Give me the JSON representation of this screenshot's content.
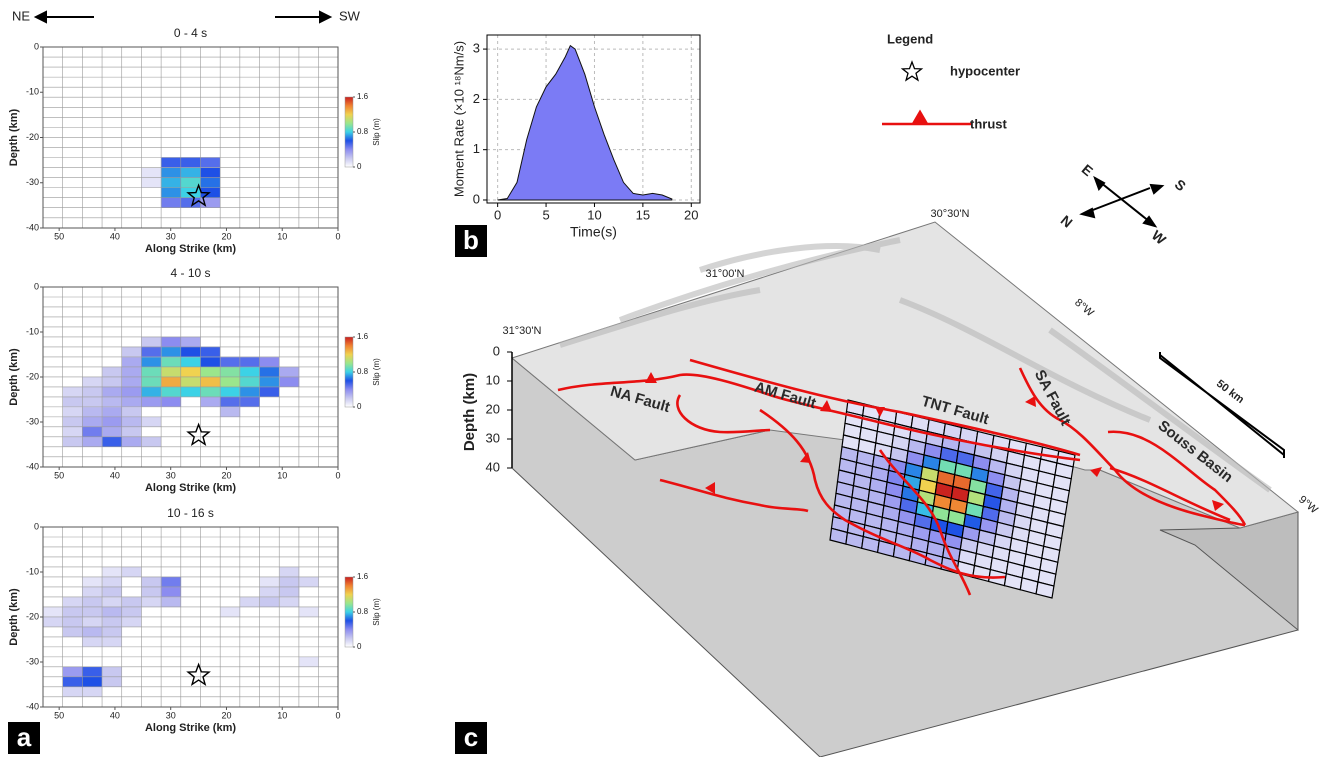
{
  "header": {
    "left": "NE",
    "right": "SW"
  },
  "panel_labels": [
    "a",
    "b",
    "c"
  ],
  "chart_data": [
    {
      "type": "heatmap",
      "title": "0 - 4 s",
      "xlabel": "Along Strike (km)",
      "ylabel": "Depth (km)",
      "xlim": [
        52.9,
        0
      ],
      "ylim": [
        -40,
        0
      ],
      "xticks": [
        50,
        40,
        30,
        20,
        10,
        0
      ],
      "yticks": [
        0,
        -10,
        -20,
        -30,
        -40
      ],
      "cell_width": 3.53,
      "cell_height": 2.22,
      "colorbar": {
        "label": "Slip (m)",
        "lim": [
          0,
          1.6
        ],
        "ticks": [
          0,
          0.8,
          1.6
        ]
      },
      "hypocenter": {
        "strike": 25,
        "depth": -33
      },
      "cells": [
        {
          "strike": 29.9,
          "depth": -25.5,
          "slip": 0.55
        },
        {
          "strike": 26.4,
          "depth": -25.5,
          "slip": 0.55
        },
        {
          "strike": 22.9,
          "depth": -25.5,
          "slip": 0.5
        },
        {
          "strike": 33.5,
          "depth": -27.8,
          "slip": 0.1
        },
        {
          "strike": 29.9,
          "depth": -27.8,
          "slip": 0.7
        },
        {
          "strike": 26.4,
          "depth": -27.8,
          "slip": 0.75
        },
        {
          "strike": 22.9,
          "depth": -27.8,
          "slip": 0.6
        },
        {
          "strike": 33.5,
          "depth": -30.0,
          "slip": 0.1
        },
        {
          "strike": 29.9,
          "depth": -30.0,
          "slip": 0.75
        },
        {
          "strike": 26.4,
          "depth": -30.0,
          "slip": 0.85
        },
        {
          "strike": 22.9,
          "depth": -30.0,
          "slip": 0.65
        },
        {
          "strike": 29.9,
          "depth": -32.2,
          "slip": 0.7
        },
        {
          "strike": 26.4,
          "depth": -32.2,
          "slip": 0.8
        },
        {
          "strike": 22.9,
          "depth": -32.2,
          "slip": 0.6
        },
        {
          "strike": 29.9,
          "depth": -34.4,
          "slip": 0.45
        },
        {
          "strike": 26.4,
          "depth": -34.4,
          "slip": 0.5
        },
        {
          "strike": 22.9,
          "depth": -34.4,
          "slip": 0.35
        }
      ]
    },
    {
      "type": "heatmap",
      "title": "4 - 10 s",
      "xlabel": "Along Strike (km)",
      "ylabel": "Depth (km)",
      "xlim": [
        52.9,
        0
      ],
      "ylim": [
        -40,
        0
      ],
      "xticks": [
        50,
        40,
        30,
        20,
        10,
        0
      ],
      "yticks": [
        0,
        -10,
        -20,
        -30,
        -40
      ],
      "cell_width": 3.53,
      "cell_height": 2.22,
      "colorbar": {
        "label": "Slip (m)",
        "lim": [
          0,
          1.6
        ],
        "ticks": [
          0,
          0.8,
          1.6
        ]
      },
      "hypocenter": {
        "strike": 25,
        "depth": -33
      },
      "cells": [
        {
          "strike": 33.5,
          "depth": -12.2,
          "slip": 0.2
        },
        {
          "strike": 29.9,
          "depth": -12.2,
          "slip": 0.4
        },
        {
          "strike": 26.4,
          "depth": -12.2,
          "slip": 0.3
        },
        {
          "strike": 37.0,
          "depth": -14.4,
          "slip": 0.2
        },
        {
          "strike": 33.5,
          "depth": -14.4,
          "slip": 0.5
        },
        {
          "strike": 29.9,
          "depth": -14.4,
          "slip": 0.7
        },
        {
          "strike": 26.4,
          "depth": -14.4,
          "slip": 0.6
        },
        {
          "strike": 22.9,
          "depth": -14.4,
          "slip": 0.55
        },
        {
          "strike": 37.0,
          "depth": -16.7,
          "slip": 0.3
        },
        {
          "strike": 33.5,
          "depth": -16.7,
          "slip": 0.7
        },
        {
          "strike": 29.9,
          "depth": -16.7,
          "slip": 0.9
        },
        {
          "strike": 26.4,
          "depth": -16.7,
          "slip": 0.8
        },
        {
          "strike": 22.9,
          "depth": -16.7,
          "slip": 0.6
        },
        {
          "strike": 19.3,
          "depth": -16.7,
          "slip": 0.5
        },
        {
          "strike": 15.8,
          "depth": -16.7,
          "slip": 0.5
        },
        {
          "strike": 12.3,
          "depth": -16.7,
          "slip": 0.4
        },
        {
          "strike": 40.5,
          "depth": -18.9,
          "slip": 0.2
        },
        {
          "strike": 37.0,
          "depth": -18.9,
          "slip": 0.3
        },
        {
          "strike": 33.5,
          "depth": -18.9,
          "slip": 0.9
        },
        {
          "strike": 29.9,
          "depth": -18.9,
          "slip": 1.1
        },
        {
          "strike": 26.4,
          "depth": -18.9,
          "slip": 1.2
        },
        {
          "strike": 22.9,
          "depth": -18.9,
          "slip": 1.0
        },
        {
          "strike": 19.3,
          "depth": -18.9,
          "slip": 0.95
        },
        {
          "strike": 15.8,
          "depth": -18.9,
          "slip": 0.8
        },
        {
          "strike": 12.3,
          "depth": -18.9,
          "slip": 0.65
        },
        {
          "strike": 8.7,
          "depth": -18.9,
          "slip": 0.3
        },
        {
          "strike": 44.1,
          "depth": -21.1,
          "slip": 0.15
        },
        {
          "strike": 40.5,
          "depth": -21.1,
          "slip": 0.2
        },
        {
          "strike": 37.0,
          "depth": -21.1,
          "slip": 0.3
        },
        {
          "strike": 33.5,
          "depth": -21.1,
          "slip": 0.9
        },
        {
          "strike": 29.9,
          "depth": -21.1,
          "slip": 1.3
        },
        {
          "strike": 26.4,
          "depth": -21.1,
          "slip": 1.1
        },
        {
          "strike": 22.9,
          "depth": -21.1,
          "slip": 1.25
        },
        {
          "strike": 19.3,
          "depth": -21.1,
          "slip": 1.0
        },
        {
          "strike": 15.8,
          "depth": -21.1,
          "slip": 0.85
        },
        {
          "strike": 12.3,
          "depth": -21.1,
          "slip": 0.7
        },
        {
          "strike": 8.7,
          "depth": -21.1,
          "slip": 0.4
        },
        {
          "strike": 47.6,
          "depth": -23.3,
          "slip": 0.15
        },
        {
          "strike": 44.1,
          "depth": -23.3,
          "slip": 0.2
        },
        {
          "strike": 40.5,
          "depth": -23.3,
          "slip": 0.3
        },
        {
          "strike": 37.0,
          "depth": -23.3,
          "slip": 0.35
        },
        {
          "strike": 33.5,
          "depth": -23.3,
          "slip": 0.75
        },
        {
          "strike": 29.9,
          "depth": -23.3,
          "slip": 0.85
        },
        {
          "strike": 26.4,
          "depth": -23.3,
          "slip": 0.8
        },
        {
          "strike": 22.9,
          "depth": -23.3,
          "slip": 0.9
        },
        {
          "strike": 19.3,
          "depth": -23.3,
          "slip": 0.8
        },
        {
          "strike": 15.8,
          "depth": -23.3,
          "slip": 0.7
        },
        {
          "strike": 12.3,
          "depth": -23.3,
          "slip": 0.55
        },
        {
          "strike": 47.6,
          "depth": -25.5,
          "slip": 0.2
        },
        {
          "strike": 44.1,
          "depth": -25.5,
          "slip": 0.2
        },
        {
          "strike": 40.5,
          "depth": -25.5,
          "slip": 0.25
        },
        {
          "strike": 37.0,
          "depth": -25.5,
          "slip": 0.3
        },
        {
          "strike": 33.5,
          "depth": -25.5,
          "slip": 0.35
        },
        {
          "strike": 29.9,
          "depth": -25.5,
          "slip": 0.4
        },
        {
          "strike": 22.9,
          "depth": -25.5,
          "slip": 0.3
        },
        {
          "strike": 19.3,
          "depth": -25.5,
          "slip": 0.5
        },
        {
          "strike": 15.8,
          "depth": -25.5,
          "slip": 0.5
        },
        {
          "strike": 47.6,
          "depth": -27.8,
          "slip": 0.15
        },
        {
          "strike": 44.1,
          "depth": -27.8,
          "slip": 0.25
        },
        {
          "strike": 40.5,
          "depth": -27.8,
          "slip": 0.3
        },
        {
          "strike": 37.0,
          "depth": -27.8,
          "slip": 0.2
        },
        {
          "strike": 19.3,
          "depth": -27.8,
          "slip": 0.25
        },
        {
          "strike": 47.6,
          "depth": -30.0,
          "slip": 0.2
        },
        {
          "strike": 44.1,
          "depth": -30.0,
          "slip": 0.3
        },
        {
          "strike": 40.5,
          "depth": -30.0,
          "slip": 0.35
        },
        {
          "strike": 37.0,
          "depth": -30.0,
          "slip": 0.25
        },
        {
          "strike": 33.5,
          "depth": -30.0,
          "slip": 0.15
        },
        {
          "strike": 47.6,
          "depth": -32.2,
          "slip": 0.15
        },
        {
          "strike": 44.1,
          "depth": -32.2,
          "slip": 0.45
        },
        {
          "strike": 40.5,
          "depth": -32.2,
          "slip": 0.3
        },
        {
          "strike": 37.0,
          "depth": -32.2,
          "slip": 0.2
        },
        {
          "strike": 47.6,
          "depth": -34.4,
          "slip": 0.2
        },
        {
          "strike": 44.1,
          "depth": -34.4,
          "slip": 0.3
        },
        {
          "strike": 40.5,
          "depth": -34.4,
          "slip": 0.55
        },
        {
          "strike": 37.0,
          "depth": -34.4,
          "slip": 0.3
        },
        {
          "strike": 33.5,
          "depth": -34.4,
          "slip": 0.2
        }
      ]
    },
    {
      "type": "heatmap",
      "title": "10 - 16 s",
      "xlabel": "Along Strike (km)",
      "ylabel": "Depth (km)",
      "xlim": [
        52.9,
        0
      ],
      "ylim": [
        -40,
        0
      ],
      "xticks": [
        50,
        40,
        30,
        20,
        10,
        0
      ],
      "yticks": [
        0,
        -10,
        -20,
        -30,
        -40
      ],
      "cell_width": 3.53,
      "cell_height": 2.22,
      "colorbar": {
        "label": "Slip (m)",
        "lim": [
          0,
          1.6
        ],
        "ticks": [
          0,
          0.8,
          1.6
        ]
      },
      "hypocenter": {
        "strike": 25,
        "depth": -33
      },
      "cells": [
        {
          "strike": 40.5,
          "depth": -10.0,
          "slip": 0.1
        },
        {
          "strike": 37.0,
          "depth": -10.0,
          "slip": 0.15
        },
        {
          "strike": 8.7,
          "depth": -10.0,
          "slip": 0.15
        },
        {
          "strike": 44.1,
          "depth": -12.2,
          "slip": 0.1
        },
        {
          "strike": 40.5,
          "depth": -12.2,
          "slip": 0.15
        },
        {
          "strike": 33.5,
          "depth": -12.2,
          "slip": 0.2
        },
        {
          "strike": 29.9,
          "depth": -12.2,
          "slip": 0.45
        },
        {
          "strike": 12.3,
          "depth": -12.2,
          "slip": 0.1
        },
        {
          "strike": 8.7,
          "depth": -12.2,
          "slip": 0.2
        },
        {
          "strike": 5.2,
          "depth": -12.2,
          "slip": 0.15
        },
        {
          "strike": 44.1,
          "depth": -14.4,
          "slip": 0.15
        },
        {
          "strike": 40.5,
          "depth": -14.4,
          "slip": 0.2
        },
        {
          "strike": 33.5,
          "depth": -14.4,
          "slip": 0.2
        },
        {
          "strike": 29.9,
          "depth": -14.4,
          "slip": 0.4
        },
        {
          "strike": 12.3,
          "depth": -14.4,
          "slip": 0.15
        },
        {
          "strike": 8.7,
          "depth": -14.4,
          "slip": 0.2
        },
        {
          "strike": 47.6,
          "depth": -16.7,
          "slip": 0.15
        },
        {
          "strike": 44.1,
          "depth": -16.7,
          "slip": 0.2
        },
        {
          "strike": 40.5,
          "depth": -16.7,
          "slip": 0.15
        },
        {
          "strike": 37.0,
          "depth": -16.7,
          "slip": 0.2
        },
        {
          "strike": 33.5,
          "depth": -16.7,
          "slip": 0.15
        },
        {
          "strike": 29.9,
          "depth": -16.7,
          "slip": 0.25
        },
        {
          "strike": 15.8,
          "depth": -16.7,
          "slip": 0.15
        },
        {
          "strike": 12.3,
          "depth": -16.7,
          "slip": 0.2
        },
        {
          "strike": 8.7,
          "depth": -16.7,
          "slip": 0.15
        },
        {
          "strike": 51.1,
          "depth": -18.9,
          "slip": 0.1
        },
        {
          "strike": 47.6,
          "depth": -18.9,
          "slip": 0.2
        },
        {
          "strike": 44.1,
          "depth": -18.9,
          "slip": 0.2
        },
        {
          "strike": 40.5,
          "depth": -18.9,
          "slip": 0.25
        },
        {
          "strike": 37.0,
          "depth": -18.9,
          "slip": 0.2
        },
        {
          "strike": 19.3,
          "depth": -18.9,
          "slip": 0.1
        },
        {
          "strike": 5.2,
          "depth": -18.9,
          "slip": 0.1
        },
        {
          "strike": 51.1,
          "depth": -21.1,
          "slip": 0.15
        },
        {
          "strike": 47.6,
          "depth": -21.1,
          "slip": 0.2
        },
        {
          "strike": 44.1,
          "depth": -21.1,
          "slip": 0.15
        },
        {
          "strike": 40.5,
          "depth": -21.1,
          "slip": 0.2
        },
        {
          "strike": 37.0,
          "depth": -21.1,
          "slip": 0.15
        },
        {
          "strike": 47.6,
          "depth": -23.3,
          "slip": 0.2
        },
        {
          "strike": 44.1,
          "depth": -23.3,
          "slip": 0.25
        },
        {
          "strike": 40.5,
          "depth": -23.3,
          "slip": 0.2
        },
        {
          "strike": 44.1,
          "depth": -25.5,
          "slip": 0.15
        },
        {
          "strike": 40.5,
          "depth": -25.5,
          "slip": 0.15
        },
        {
          "strike": 5.2,
          "depth": -30.0,
          "slip": 0.1
        },
        {
          "strike": 47.6,
          "depth": -32.2,
          "slip": 0.35
        },
        {
          "strike": 44.1,
          "depth": -32.2,
          "slip": 0.55
        },
        {
          "strike": 40.5,
          "depth": -32.2,
          "slip": 0.2
        },
        {
          "strike": 47.6,
          "depth": -34.4,
          "slip": 0.55
        },
        {
          "strike": 44.1,
          "depth": -34.4,
          "slip": 0.6
        },
        {
          "strike": 40.5,
          "depth": -34.4,
          "slip": 0.2
        },
        {
          "strike": 47.6,
          "depth": -36.6,
          "slip": 0.15
        },
        {
          "strike": 44.1,
          "depth": -36.6,
          "slip": 0.15
        }
      ]
    },
    {
      "type": "area",
      "xlabel": "Time(s)",
      "ylabel": "Moment Rate (×10 ¹⁸Nm/s)",
      "color": "#7b7bf5",
      "x": [
        0,
        1,
        2,
        3,
        4,
        5,
        6,
        7,
        7.5,
        8,
        9,
        10,
        11,
        12,
        13,
        14,
        15,
        16,
        17,
        18
      ],
      "values": [
        0,
        0.03,
        0.35,
        1.2,
        1.85,
        2.25,
        2.5,
        2.85,
        3.07,
        3.0,
        2.5,
        1.85,
        1.3,
        0.8,
        0.35,
        0.13,
        0.1,
        0.13,
        0.1,
        0.02
      ],
      "xlim": [
        -1.1,
        20.9
      ],
      "ylim": [
        -0.06,
        3.28
      ],
      "xticks": [
        0,
        5,
        10,
        15,
        20
      ],
      "yticks": [
        0,
        1,
        2,
        3
      ],
      "grid": true
    }
  ],
  "block_diagram": {
    "depth_label": "Depth (km)",
    "depth_ticks": [
      0,
      10,
      20,
      30,
      40
    ],
    "coordinates": [
      "31°30'N",
      "31°00'N",
      "30°30'N",
      "8°W",
      "9°W"
    ],
    "faults": [
      "NA Fault",
      "AM Fault",
      "TNT Fault",
      "SA Fault",
      "Souss Basin"
    ],
    "scale": "50 km",
    "compass": [
      "E",
      "S",
      "N",
      "W"
    ],
    "legend": {
      "title": "Legend",
      "items": [
        "hypocenter",
        "thrust"
      ]
    }
  }
}
